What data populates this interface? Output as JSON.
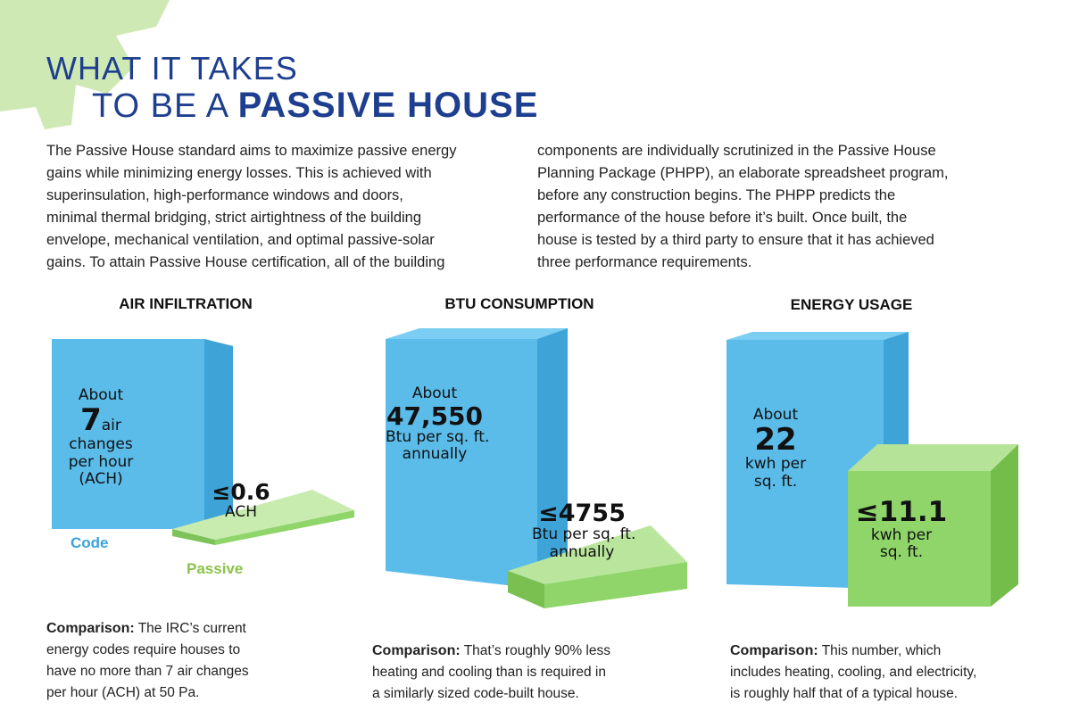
{
  "title": {
    "line1": "WHAT IT TAKES",
    "line2_light": "TO BE A",
    "line2_bold": "PASSIVE HOUSE"
  },
  "intro_left": [
    "The Passive House standard aims to maximize passive energy",
    "gains while minimizing energy losses. This is achieved with",
    "superinsulation, high-performance windows and doors,",
    "minimal thermal bridging, strict airtightness of the building",
    "envelope, mechanical ventilation, and optimal passive-solar",
    "gains. To attain Passive House certification, all of the building"
  ],
  "intro_right": [
    "components are individually scrutinized in the Passive House",
    "Planning Package (PHPP), an elaborate spreadsheet program,",
    "before any construction begins. The PHPP predicts the",
    "performance of the house before it’s built. Once built, the",
    "house is tested by a third party to ensure that it has achieved",
    "three performance requirements."
  ],
  "colors": {
    "code_blue": "#5bbcea",
    "passive_green": "#8fd56a",
    "title_blue": "#1e3f8f",
    "gear_green": "#cfe9b4"
  },
  "legend": {
    "code": "Code",
    "passive": "Passive"
  },
  "sections": {
    "air": {
      "heading": "AIR INFILTRATION",
      "code": {
        "about": "About",
        "value": "7",
        "unit_inline": "air",
        "line3": "changes",
        "line4": "per hour",
        "line5": "(ACH)",
        "number": 7
      },
      "passive": {
        "value": "≤0.6",
        "unit": "ACH",
        "number": 0.6
      },
      "comparison_label": "Comparison:",
      "comparison": [
        " The IRC’s current",
        "energy codes require houses to",
        "have no more than 7 air changes",
        "per hour (ACH) at 50 Pa."
      ]
    },
    "btu": {
      "heading": "BTU CONSUMPTION",
      "code": {
        "about": "About",
        "value": "47,550",
        "line3": "Btu per sq. ft.",
        "line4": "annually",
        "number": 47550
      },
      "passive": {
        "value": "≤4755",
        "line2": "Btu per sq. ft.",
        "line3": "annually",
        "number": 4755
      },
      "comparison_label": "Comparison:",
      "comparison": [
        " That’s roughly 90% less",
        "heating and cooling than is required in",
        "a similarly sized code-built house."
      ]
    },
    "energy": {
      "heading": "ENERGY USAGE",
      "code": {
        "about": "About",
        "value": "22",
        "line3": "kwh per",
        "line4": "sq. ft.",
        "number": 22
      },
      "passive": {
        "value": "≤11.1",
        "line2": "kwh per",
        "line3": "sq. ft.",
        "number": 11.1
      },
      "comparison_label": "Comparison:",
      "comparison": [
        " This number, which",
        "includes heating, cooling, and electricity,",
        "is roughly half that of a typical house."
      ]
    }
  }
}
